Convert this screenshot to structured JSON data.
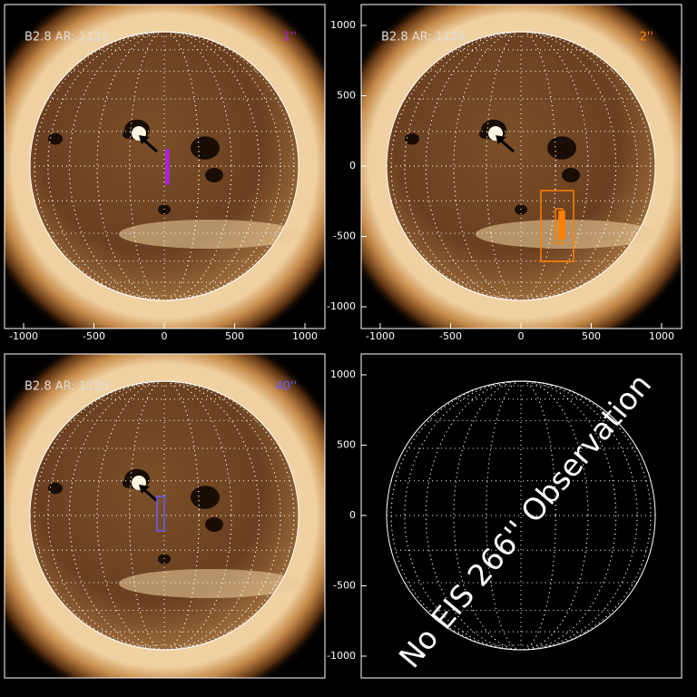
{
  "panels": [
    {
      "label": "B2.8 AR: 1125",
      "slit": "1''",
      "color": "#b020e0",
      "xticks": [
        -1000,
        -500,
        0,
        500,
        1000
      ]
    },
    {
      "label": "B2.8 AR: 1125",
      "slit": "2''",
      "color": "#ff8000",
      "xticks": [
        -1000,
        -500,
        0,
        500,
        1000
      ],
      "yticks": [
        -1000,
        -500,
        0,
        500,
        1000
      ]
    },
    {
      "label": "B2.8 AR: 1125",
      "slit": "40''",
      "color": "#6a5cff"
    },
    {
      "message": "No EIS 266'' Observation",
      "yticks": [
        -1000,
        -500,
        0,
        500,
        1000
      ]
    }
  ]
}
